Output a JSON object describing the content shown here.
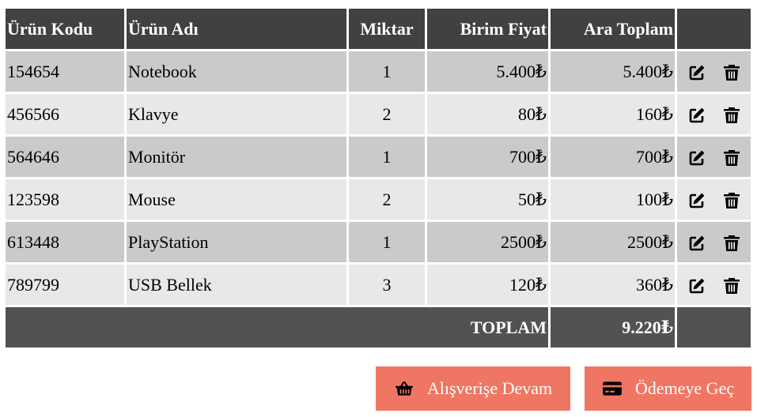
{
  "table": {
    "headers": {
      "code": "Ürün Kodu",
      "name": "Ürün Adı",
      "qty": "Miktar",
      "unit_price": "Birim Fiyat",
      "subtotal": "Ara Toplam"
    },
    "rows": [
      {
        "code": "154654",
        "name": "Notebook",
        "qty": "1",
        "unit_price": "5.400₺",
        "subtotal": "5.400₺"
      },
      {
        "code": "456566",
        "name": "Klavye",
        "qty": "2",
        "unit_price": "80₺",
        "subtotal": "160₺"
      },
      {
        "code": "564646",
        "name": "Monitör",
        "qty": "1",
        "unit_price": "700₺",
        "subtotal": "700₺"
      },
      {
        "code": "123598",
        "name": "Mouse",
        "qty": "2",
        "unit_price": "50₺",
        "subtotal": "100₺"
      },
      {
        "code": "613448",
        "name": "PlayStation",
        "qty": "1",
        "unit_price": "2500₺",
        "subtotal": "2500₺"
      },
      {
        "code": "789799",
        "name": "USB Bellek",
        "qty": "3",
        "unit_price": "120₺",
        "subtotal": "360₺"
      }
    ],
    "total_label": "TOPLAM",
    "total_value": "9.220₺"
  },
  "actions": {
    "continue_label": "Alışverişe Devam",
    "checkout_label": "Ödemeye Geç"
  },
  "icons": {
    "edit": "edit-icon",
    "delete": "trash-icon",
    "basket": "basket-icon",
    "card": "credit-card-icon"
  },
  "colors": {
    "header_bg": "#414141",
    "row_dark": "#cacaca",
    "row_light": "#e8e8e8",
    "total_bg": "#525252",
    "button_bg": "#f07664"
  }
}
